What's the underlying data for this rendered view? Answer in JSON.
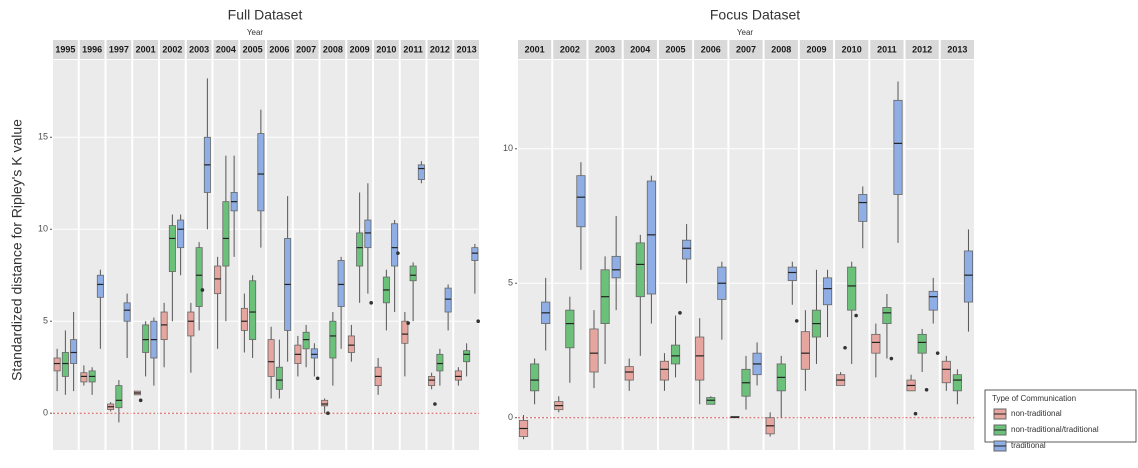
{
  "y_label": "Standardized distance for Ripley's K value",
  "legend": {
    "title": "Type of Communication"
  },
  "chart_data": [
    {
      "type": "box",
      "title": "Full Dataset",
      "x_label": "Year",
      "categories": [
        "1995",
        "1996",
        "1997",
        "2001",
        "2002",
        "2003",
        "2004",
        "2005",
        "2006",
        "2007",
        "2008",
        "2009",
        "2010",
        "2011",
        "2012",
        "2013"
      ],
      "ylim": [
        -2,
        19.2
      ],
      "yticks": [
        0,
        5,
        10,
        15
      ],
      "reference_line": 0,
      "series": [
        {
          "name": "non-traditional",
          "color": "#e6a69f",
          "low": [
            1.2,
            1.5,
            0.1,
            1.0,
            2.5,
            2.2,
            3.5,
            3.3,
            0.8,
            2.0,
            0.0,
            2.8,
            1.0,
            2.0,
            1.3,
            1.5
          ],
          "q1": [
            2.3,
            1.7,
            0.2,
            1.0,
            4.0,
            4.2,
            6.5,
            4.5,
            2.0,
            2.7,
            0.4,
            3.3,
            1.5,
            3.8,
            1.5,
            1.8
          ],
          "median": [
            2.7,
            2.0,
            0.35,
            1.1,
            4.8,
            5.0,
            7.3,
            5.0,
            2.8,
            3.2,
            0.5,
            3.7,
            2.0,
            4.3,
            1.8,
            2.0
          ],
          "q3": [
            3.0,
            2.2,
            0.5,
            1.2,
            5.5,
            5.5,
            8.0,
            5.7,
            4.0,
            3.7,
            0.7,
            4.2,
            2.5,
            5.0,
            2.0,
            2.3
          ],
          "high": [
            3.5,
            2.6,
            0.6,
            1.2,
            6.0,
            6.0,
            8.5,
            6.5,
            4.7,
            4.2,
            0.8,
            4.8,
            3.0,
            5.5,
            2.2,
            2.5
          ],
          "outliers": [
            [],
            [],
            [],
            [
              0.7
            ],
            [],
            [],
            [],
            [],
            [],
            [],
            [
              0.0
            ],
            [],
            [],
            [
              4.9
            ],
            [
              0.5
            ],
            []
          ]
        },
        {
          "name": "non-traditional/traditional",
          "color": "#6cc17a",
          "low": [
            1.0,
            1.0,
            -0.5,
            2.0,
            5.0,
            4.5,
            5.0,
            3.0,
            0.8,
            2.5,
            1.5,
            6.0,
            4.5,
            5.0,
            1.5,
            2.0
          ],
          "q1": [
            2.0,
            1.7,
            0.3,
            3.3,
            7.7,
            5.8,
            8.0,
            4.0,
            1.3,
            3.5,
            3.0,
            8.0,
            6.0,
            7.2,
            2.3,
            2.8
          ],
          "median": [
            2.7,
            2.0,
            0.7,
            4.0,
            9.5,
            7.5,
            9.5,
            5.5,
            1.8,
            4.0,
            4.2,
            9.0,
            6.7,
            7.5,
            2.7,
            3.2
          ],
          "q3": [
            3.3,
            2.3,
            1.5,
            4.8,
            10.2,
            9.0,
            11.5,
            7.2,
            2.5,
            4.4,
            5.0,
            9.8,
            7.4,
            8.0,
            3.2,
            3.4
          ],
          "high": [
            4.5,
            2.5,
            1.8,
            5.0,
            10.8,
            9.3,
            14.0,
            7.5,
            4.0,
            4.8,
            5.5,
            12.0,
            7.8,
            8.2,
            3.5,
            3.8
          ],
          "outliers": [
            [],
            [],
            [],
            [],
            [],
            [
              6.7
            ],
            [],
            [],
            [],
            [],
            [],
            [],
            [],
            [],
            [],
            []
          ]
        },
        {
          "name": "traditional",
          "color": "#8eaee5",
          "low": [
            1.2,
            3.5,
            3.0,
            1.5,
            7.5,
            10.0,
            8.5,
            9.0,
            2.8,
            2.0,
            3.5,
            6.5,
            5.5,
            12.5,
            4.5,
            6.5
          ],
          "q1": [
            2.7,
            6.3,
            5.0,
            3.0,
            9.0,
            12.0,
            11.0,
            11.0,
            4.5,
            3.0,
            5.8,
            9.0,
            8.0,
            12.7,
            5.5,
            8.3
          ],
          "median": [
            3.3,
            7.0,
            5.6,
            4.0,
            10.0,
            13.5,
            11.5,
            13.0,
            7.0,
            3.2,
            7.0,
            9.8,
            9.0,
            13.3,
            6.2,
            8.7
          ],
          "q3": [
            4.0,
            7.5,
            6.0,
            5.0,
            10.5,
            15.0,
            12.0,
            15.2,
            9.5,
            3.5,
            8.3,
            10.5,
            10.3,
            13.5,
            6.8,
            9.0
          ],
          "high": [
            5.5,
            7.8,
            6.5,
            5.2,
            10.8,
            18.2,
            14.0,
            16.5,
            11.8,
            3.8,
            8.5,
            12.5,
            10.5,
            13.7,
            7.0,
            9.2
          ],
          "outliers": [
            [],
            [],
            [],
            [],
            [],
            [],
            [],
            [],
            [],
            [
              1.9
            ],
            [],
            [
              6.0
            ],
            [
              8.7
            ],
            [],
            [],
            [
              5.0
            ]
          ]
        }
      ]
    },
    {
      "type": "box",
      "title": "Focus Dataset",
      "x_label": "Year",
      "categories": [
        "2001",
        "2002",
        "2003",
        "2004",
        "2005",
        "2006",
        "2007",
        "2008",
        "2009",
        "2010",
        "2011",
        "2012",
        "2013"
      ],
      "ylim": [
        -1.2,
        13.3
      ],
      "yticks": [
        0,
        5,
        10
      ],
      "reference_line": 0,
      "series": [
        {
          "name": "non-traditional",
          "color": "#e6a69f",
          "low": [
            -0.8,
            0.2,
            1.1,
            1.0,
            1.0,
            0.5,
            0.0,
            -0.7,
            1.0,
            1.2,
            1.5,
            1.0,
            1.0
          ],
          "q1": [
            -0.7,
            0.3,
            1.7,
            1.4,
            1.4,
            1.4,
            0.0,
            -0.6,
            1.8,
            1.2,
            2.4,
            1.0,
            1.3
          ],
          "median": [
            -0.4,
            0.45,
            2.4,
            1.7,
            1.8,
            2.3,
            0.02,
            -0.3,
            2.4,
            1.4,
            2.8,
            1.2,
            1.8
          ],
          "q3": [
            -0.1,
            0.6,
            3.3,
            1.9,
            2.1,
            3.0,
            0.05,
            0.0,
            3.2,
            1.6,
            3.1,
            1.4,
            2.1
          ],
          "high": [
            0.1,
            0.8,
            4.0,
            2.2,
            2.4,
            3.7,
            0.05,
            0.2,
            4.0,
            1.7,
            3.5,
            1.6,
            2.3
          ],
          "outliers": [
            [],
            [],
            [],
            [],
            [],
            [],
            [],
            [],
            [],
            [
              2.6
            ],
            [],
            [
              0.15
            ],
            []
          ]
        },
        {
          "name": "non-traditional/traditional",
          "color": "#6cc17a",
          "low": [
            0.5,
            1.3,
            2.0,
            2.3,
            1.5,
            0.5,
            0.3,
            0.0,
            2.0,
            2.0,
            2.2,
            1.7,
            0.5
          ],
          "q1": [
            1.0,
            2.6,
            3.5,
            4.5,
            2.0,
            0.5,
            0.8,
            1.0,
            3.0,
            4.0,
            3.5,
            2.4,
            1.0
          ],
          "median": [
            1.4,
            3.5,
            4.5,
            5.7,
            2.3,
            0.65,
            1.3,
            1.5,
            3.5,
            4.9,
            3.9,
            2.8,
            1.4
          ],
          "q3": [
            2.0,
            4.0,
            5.5,
            6.5,
            2.7,
            0.75,
            1.8,
            2.0,
            4.0,
            5.6,
            4.1,
            3.1,
            1.6
          ],
          "high": [
            2.2,
            4.5,
            6.0,
            6.8,
            3.8,
            0.8,
            2.3,
            2.3,
            5.5,
            5.8,
            4.6,
            3.3,
            1.8
          ],
          "outliers": [
            [],
            [],
            [],
            [],
            [
              3.9
            ],
            [],
            [],
            [],
            [],
            [
              3.8
            ],
            [
              2.2
            ],
            [
              1.04
            ],
            []
          ]
        },
        {
          "name": "traditional",
          "color": "#8eaee5",
          "low": [
            2.5,
            5.5,
            4.0,
            3.5,
            5.0,
            2.9,
            1.2,
            4.2,
            3.0,
            6.3,
            6.5,
            3.5,
            3.2
          ],
          "q1": [
            3.5,
            7.1,
            5.2,
            4.6,
            5.9,
            4.4,
            1.6,
            5.1,
            4.2,
            7.3,
            8.3,
            4.0,
            4.3
          ],
          "median": [
            3.9,
            8.2,
            5.5,
            6.8,
            6.3,
            5.0,
            2.0,
            5.4,
            4.8,
            8.0,
            10.2,
            4.5,
            5.3
          ],
          "q3": [
            4.3,
            9.0,
            6.0,
            8.8,
            6.6,
            5.6,
            2.4,
            5.6,
            5.2,
            8.3,
            11.8,
            4.7,
            6.2
          ],
          "high": [
            5.2,
            9.5,
            7.5,
            9.0,
            7.2,
            5.8,
            2.8,
            5.8,
            5.5,
            8.6,
            12.5,
            5.2,
            7.0
          ],
          "outliers": [
            [],
            [],
            [],
            [],
            [],
            [],
            [],
            [
              3.6
            ],
            [],
            [],
            [],
            [
              2.4
            ],
            []
          ]
        }
      ]
    }
  ]
}
